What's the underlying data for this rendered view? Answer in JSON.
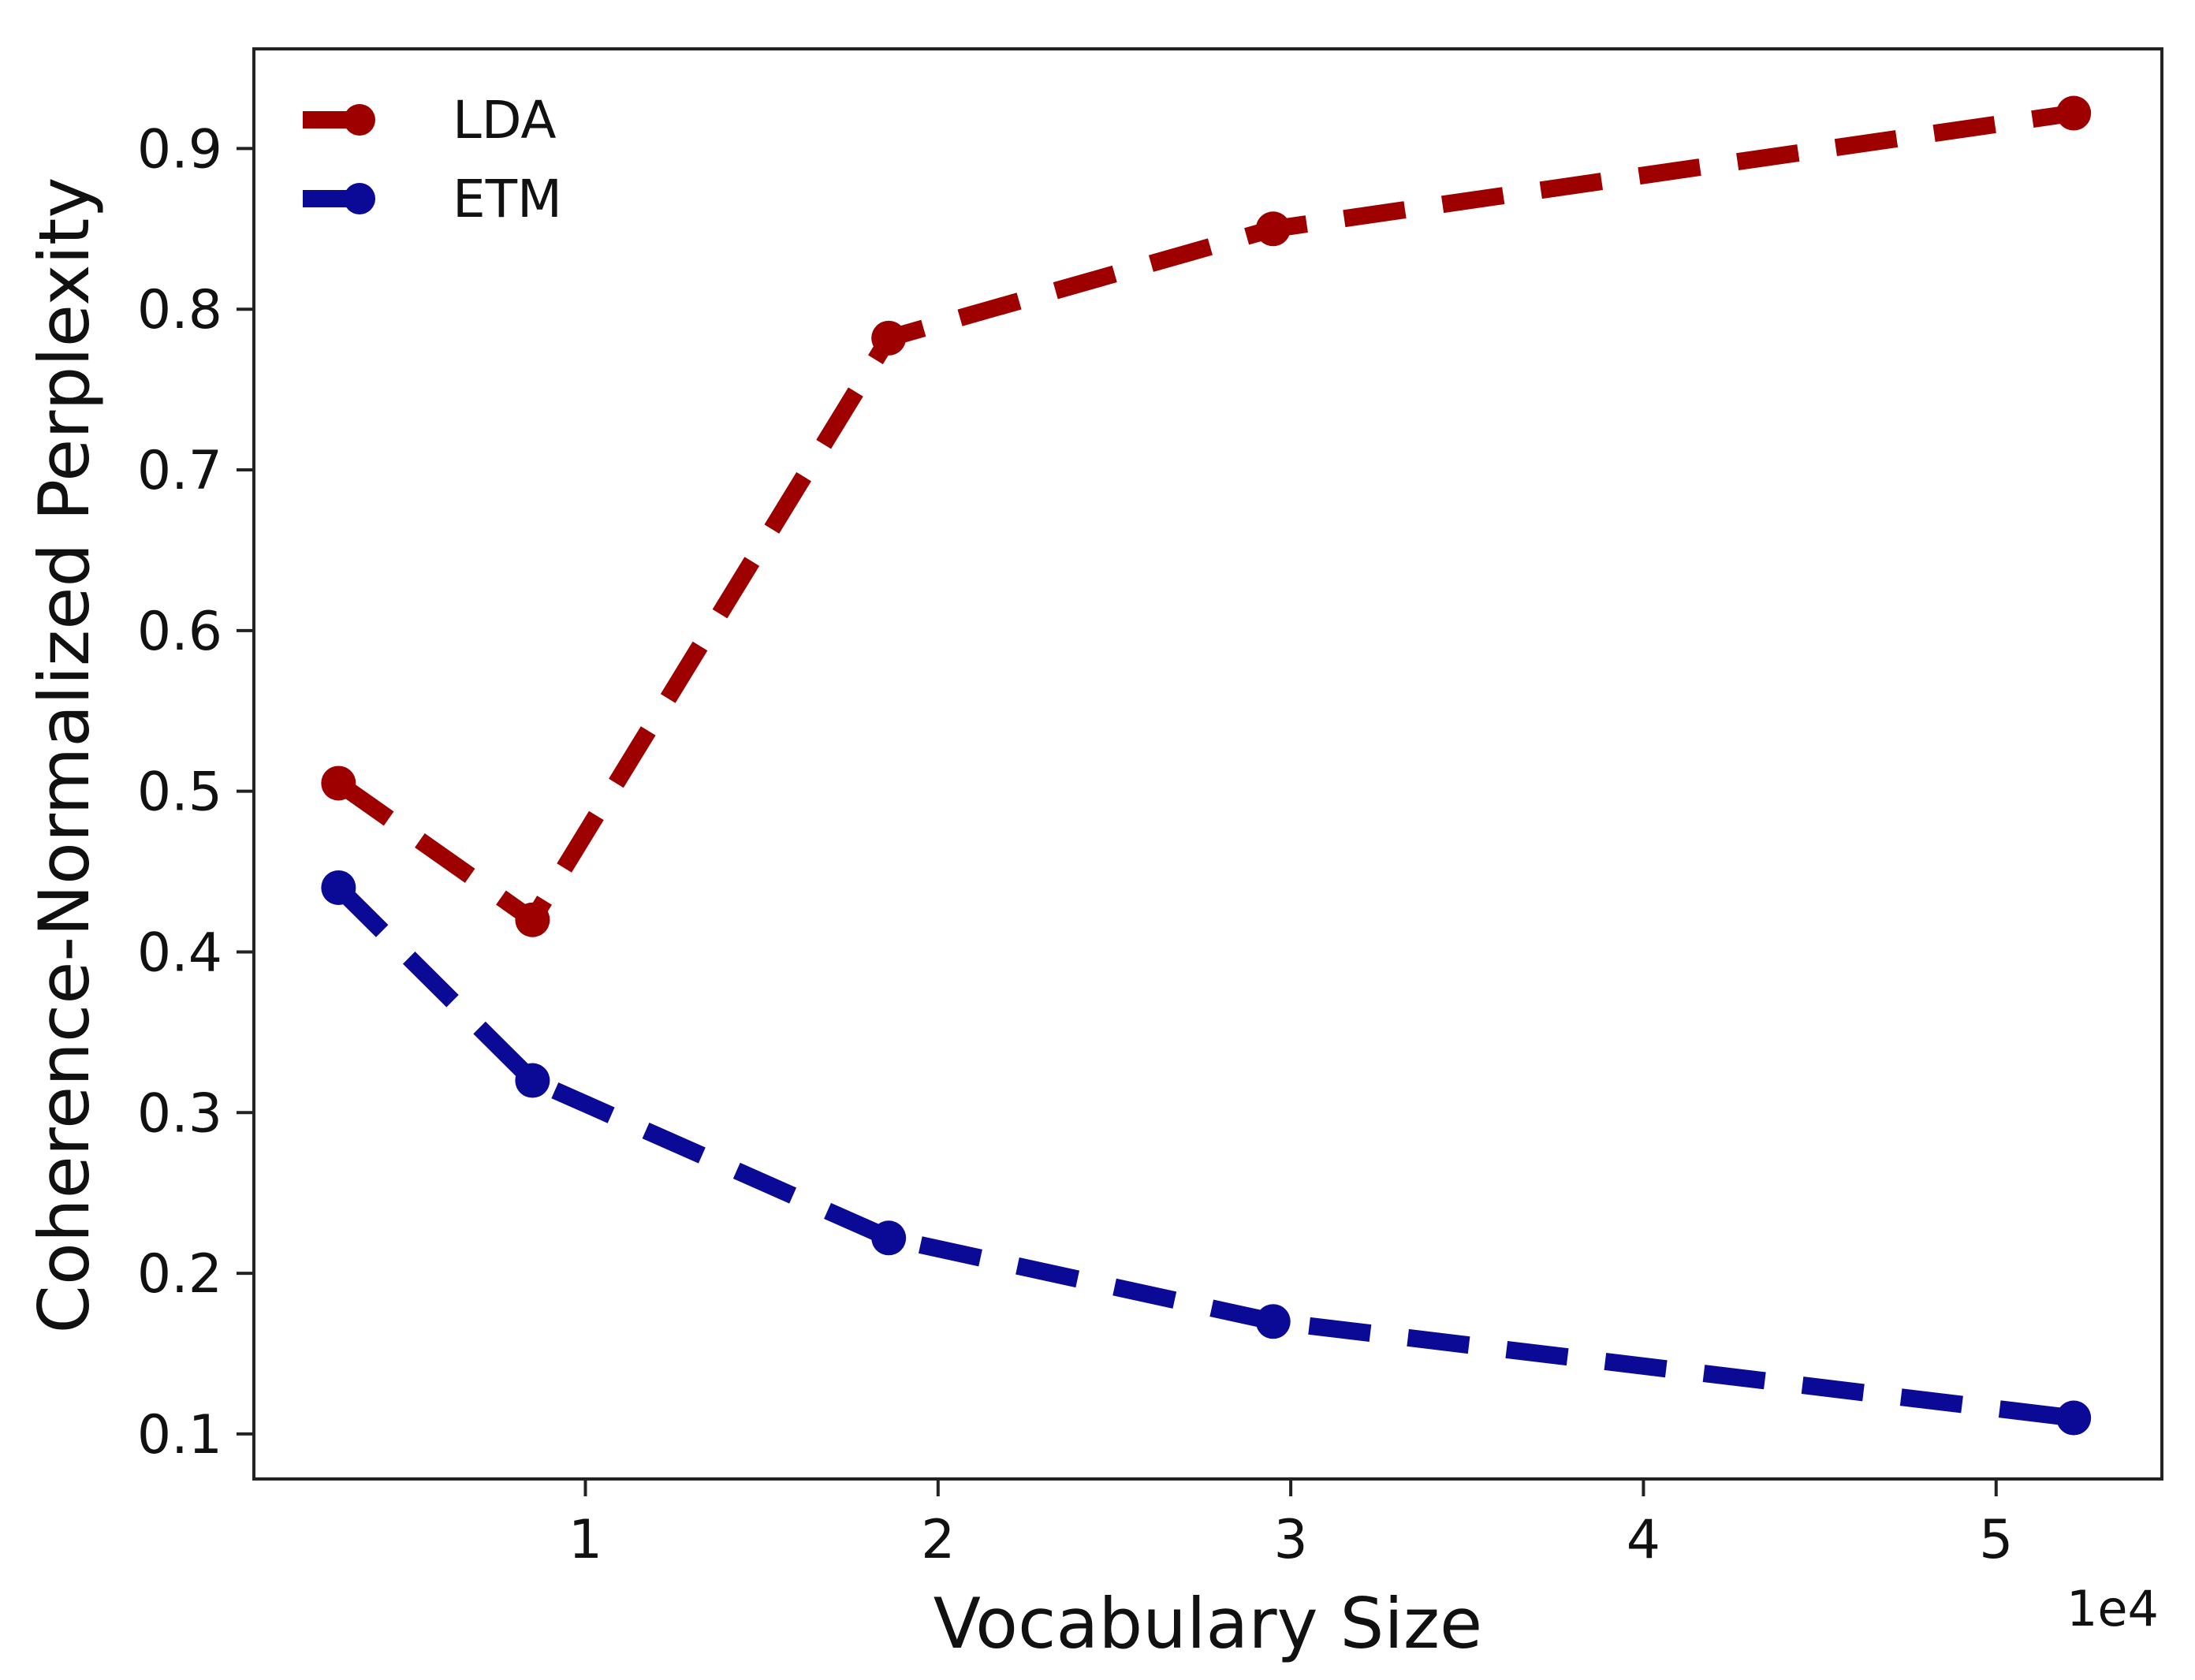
{
  "chart_data": {
    "type": "line",
    "title": "",
    "xlabel": "Vocabulary Size",
    "ylabel": "Coherence-Normalized Perplexity",
    "x_offset_label": "1e4",
    "xlim": [
      0.06,
      5.47
    ],
    "ylim": [
      0.072,
      0.962
    ],
    "xticks": [
      1,
      2,
      3,
      4,
      5
    ],
    "xtick_labels": [
      "1",
      "2",
      "3",
      "4",
      "5"
    ],
    "yticks": [
      0.1,
      0.2,
      0.3,
      0.4,
      0.5,
      0.6,
      0.7,
      0.8,
      0.9
    ],
    "ytick_labels": [
      "0.1",
      "0.2",
      "0.3",
      "0.4",
      "0.5",
      "0.6",
      "0.7",
      "0.8",
      "0.9"
    ],
    "grid": false,
    "legend_position": "top-left",
    "series": [
      {
        "name": "LDA",
        "color": "#9e0000",
        "line_style": "dashed",
        "marker": "circle",
        "x": [
          0.3,
          0.85,
          1.86,
          2.95,
          5.22
        ],
        "y": [
          0.505,
          0.42,
          0.782,
          0.85,
          0.922
        ]
      },
      {
        "name": "ETM",
        "color": "#0a0a96",
        "line_style": "dashed",
        "marker": "circle",
        "x": [
          0.3,
          0.85,
          1.86,
          2.95,
          5.22
        ],
        "y": [
          0.44,
          0.32,
          0.222,
          0.17,
          0.11
        ]
      }
    ]
  }
}
